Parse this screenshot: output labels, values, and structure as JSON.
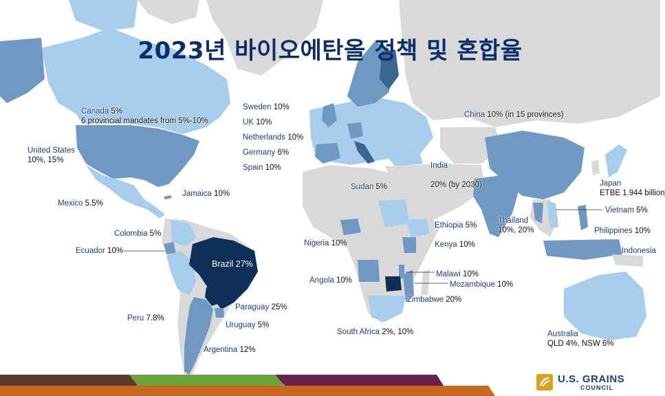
{
  "title": "2023년 바이오에탄올 정책 및 혼합율",
  "legend_shades": {
    "dark": "#0d2f58",
    "mid": "#6f99c3",
    "light": "#a7ccec",
    "grey": "#d9d9d9"
  },
  "labels": {
    "canada": {
      "country": "Canada",
      "rate": "5%",
      "note": "6 provincial mandates from 5%-10%"
    },
    "united_states": {
      "country": "United States",
      "rate": "10%, 15%"
    },
    "mexico": {
      "country": "Mexico",
      "rate": "5.5%"
    },
    "jamaica": {
      "country": "Jamaica",
      "rate": "10%"
    },
    "colombia": {
      "country": "Colombia",
      "rate": "5%"
    },
    "ecuador": {
      "country": "Ecuador",
      "rate": "10%"
    },
    "peru": {
      "country": "Peru",
      "rate": "7.8%"
    },
    "brazil": {
      "country": "Brazil",
      "rate": "27%"
    },
    "paraguay": {
      "country": "Paraguay",
      "rate": "25%"
    },
    "uruguay": {
      "country": "Uruguay",
      "rate": "5%"
    },
    "argentina": {
      "country": "Argentina",
      "rate": "12%"
    },
    "sweden": {
      "country": "Sweden",
      "rate": "10%"
    },
    "uk": {
      "country": "UK",
      "rate": "10%"
    },
    "netherlands": {
      "country": "Netherlands",
      "rate": "10%"
    },
    "germany": {
      "country": "Germany",
      "rate": "6%"
    },
    "spain": {
      "country": "Spain",
      "rate": "10%"
    },
    "sudan": {
      "country": "Sudan",
      "rate": "5%"
    },
    "nigeria": {
      "country": "Nigeria",
      "rate": "10%"
    },
    "ethiopia": {
      "country": "Ethiopia",
      "rate": "5%"
    },
    "kenya": {
      "country": "Kenya",
      "rate": "10%"
    },
    "angola": {
      "country": "Angola",
      "rate": "10%"
    },
    "malawi": {
      "country": "Malawi",
      "rate": "10%"
    },
    "mozambique": {
      "country": "Mozambique",
      "rate": "10%"
    },
    "zimbabwe": {
      "country": "Zimbabwe",
      "rate": "20%"
    },
    "south_africa": {
      "country": "South Africa",
      "rate": "2%, 10%"
    },
    "china": {
      "country": "China",
      "rate": "10%",
      "note": "(in 15 provinces)"
    },
    "india": {
      "country": "India",
      "rate": "20% (by 2030)"
    },
    "japan": {
      "country": "Japan",
      "rate": "ETBE 1.944 billion"
    },
    "vietnam": {
      "country": "Vietnam",
      "rate": "5%"
    },
    "thailand": {
      "country": "Thailand",
      "rate": "10%, 20%"
    },
    "philippines": {
      "country": "Philippines",
      "rate": "10%"
    },
    "indonesia": {
      "country": "Indonesia",
      "rate": ""
    },
    "australia": {
      "country": "Australia",
      "rate": "QLD 4%, NSW 6%"
    }
  },
  "footer": {
    "stripe_colors": [
      "#5a3a2a",
      "#6aa33a",
      "#6d1f4f",
      "#c9671e"
    ],
    "logo_name": "U.S. GRAINS",
    "logo_sub": "COUNCIL",
    "logo_color": "#d9a21b"
  }
}
